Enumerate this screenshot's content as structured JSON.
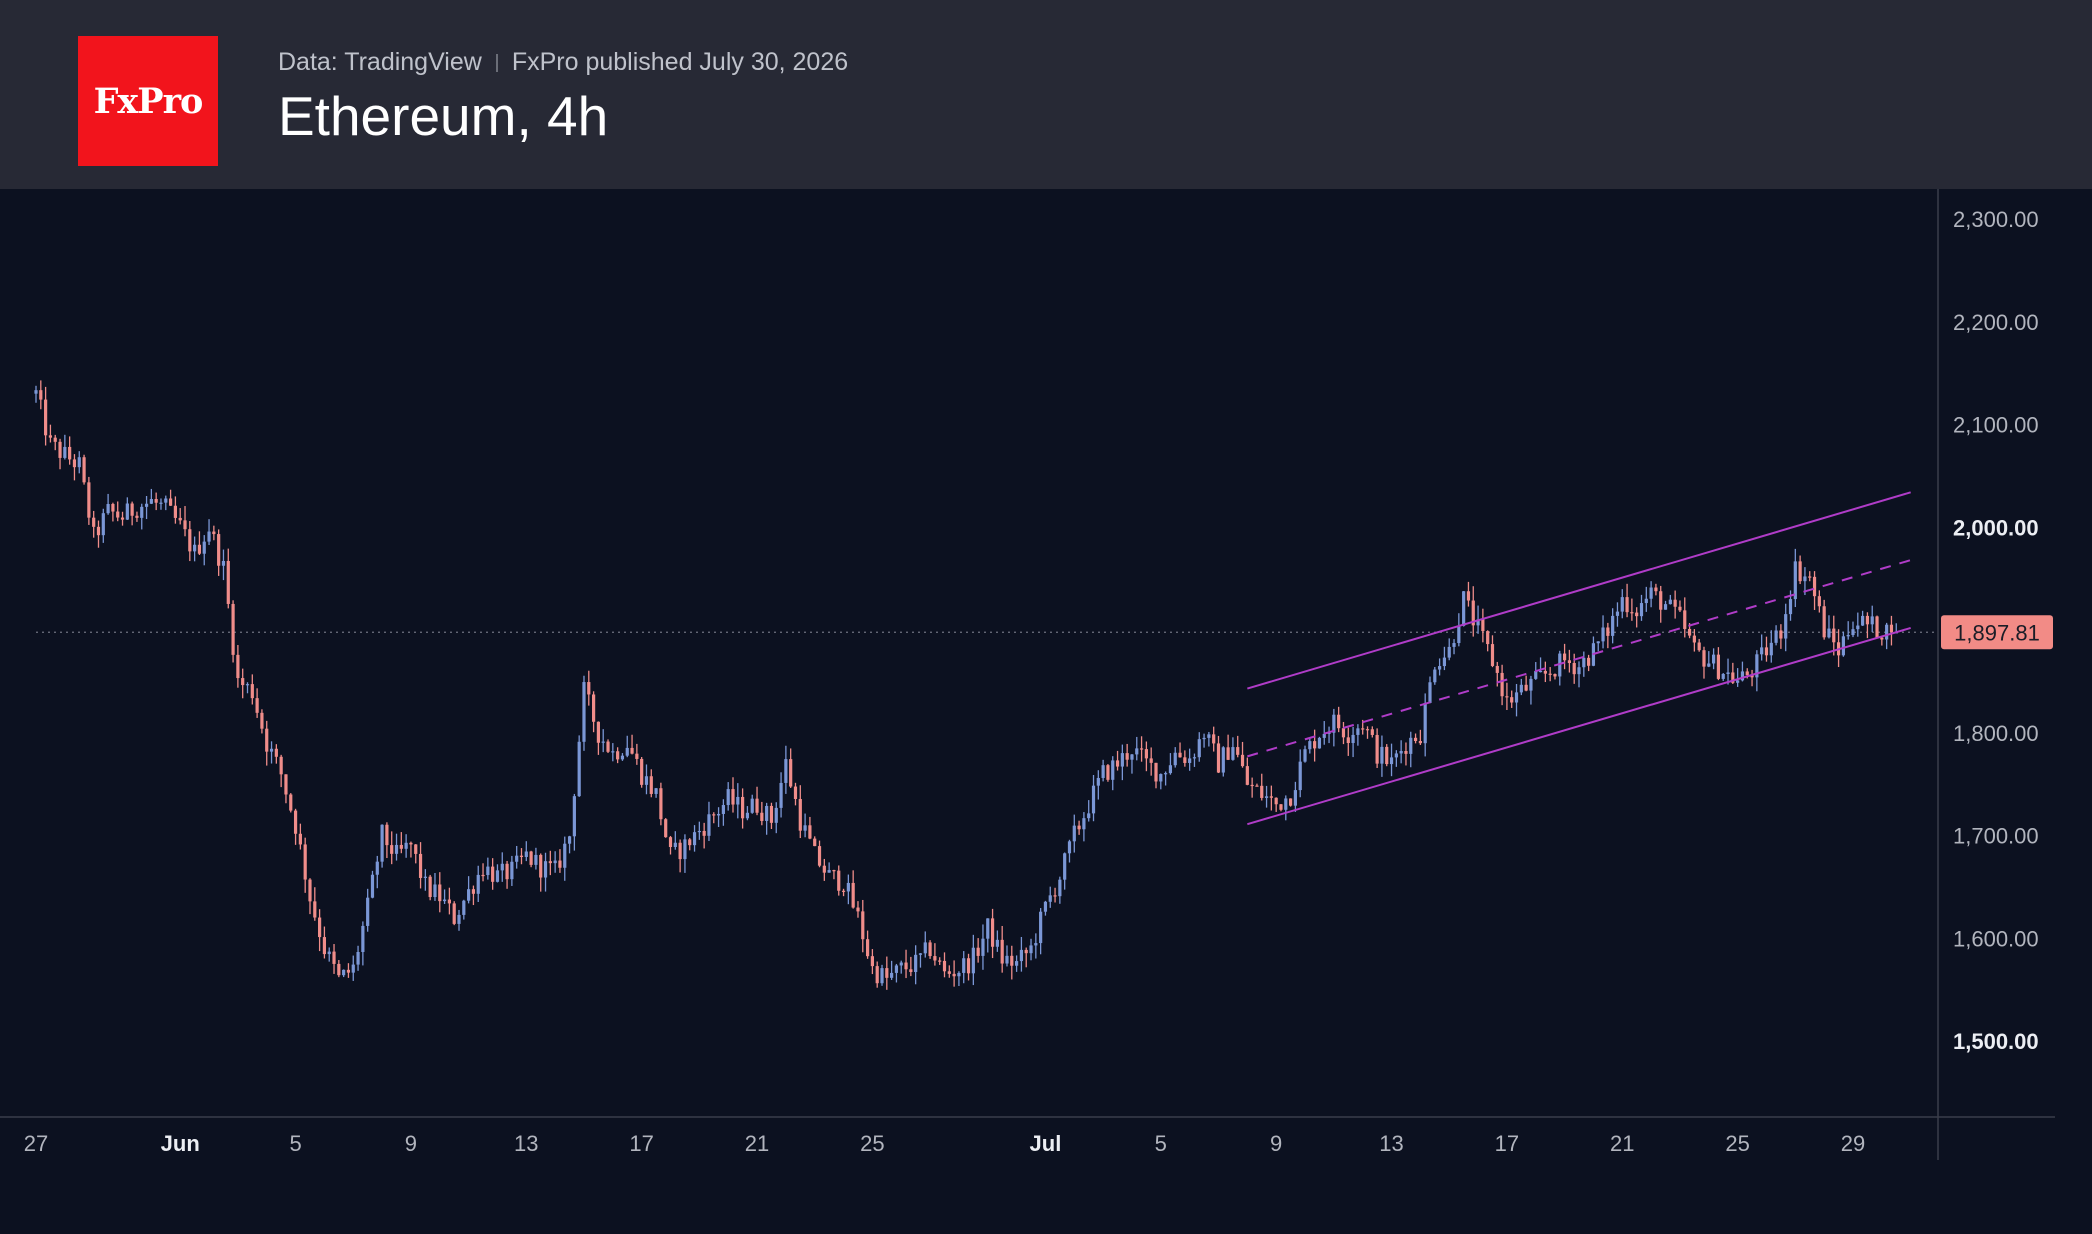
{
  "header": {
    "logo_text": "FxPro",
    "data_source": "Data: TradingView",
    "published": "FxPro published July 30, 2026",
    "title": "Ethereum, 4h"
  },
  "colors": {
    "background": "#0c1120",
    "header_background": "#272935",
    "logo_red": "#f2141c",
    "bull_candle": "#7b97d6",
    "bear_candle": "#f08d8a",
    "channel": "#b03cc8",
    "price_label": "#f28b86"
  },
  "chart_data": {
    "type": "candlestick",
    "title": "Ethereum, 4h",
    "ylim": [
      1420,
      2330
    ],
    "y_ticks": [
      {
        "value": 2300,
        "label": "2,300.00",
        "bold": false
      },
      {
        "value": 2200,
        "label": "2,200.00",
        "bold": false
      },
      {
        "value": 2100,
        "label": "2,100.00",
        "bold": false
      },
      {
        "value": 2000,
        "label": "2,000.00",
        "bold": true
      },
      {
        "value": 1800,
        "label": "1,800.00",
        "bold": false
      },
      {
        "value": 1700,
        "label": "1,700.00",
        "bold": false
      },
      {
        "value": 1600,
        "label": "1,600.00",
        "bold": false
      },
      {
        "value": 1500,
        "label": "1,500.00",
        "bold": true
      }
    ],
    "x_ticks": [
      {
        "date": "2026-05-27",
        "label": "27",
        "bold": false
      },
      {
        "date": "2026-06-01",
        "label": "Jun",
        "bold": true
      },
      {
        "date": "2026-06-05",
        "label": "5",
        "bold": false
      },
      {
        "date": "2026-06-09",
        "label": "9",
        "bold": false
      },
      {
        "date": "2026-06-13",
        "label": "13",
        "bold": false
      },
      {
        "date": "2026-06-17",
        "label": "17",
        "bold": false
      },
      {
        "date": "2026-06-21",
        "label": "21",
        "bold": false
      },
      {
        "date": "2026-06-25",
        "label": "25",
        "bold": false
      },
      {
        "date": "2026-07-01",
        "label": "Jul",
        "bold": true
      },
      {
        "date": "2026-07-05",
        "label": "5",
        "bold": false
      },
      {
        "date": "2026-07-09",
        "label": "9",
        "bold": false
      },
      {
        "date": "2026-07-13",
        "label": "13",
        "bold": false
      },
      {
        "date": "2026-07-17",
        "label": "17",
        "bold": false
      },
      {
        "date": "2026-07-21",
        "label": "21",
        "bold": false
      },
      {
        "date": "2026-07-25",
        "label": "25",
        "bold": false
      },
      {
        "date": "2026-07-29",
        "label": "29",
        "bold": false
      }
    ],
    "last_price": 1897.81,
    "last_price_label": "1,897.81",
    "price_path": [
      [
        "2026-05-27",
        2130
      ],
      [
        "2026-05-27",
        2080
      ],
      [
        "2026-05-28",
        2070
      ],
      [
        "2026-05-28",
        2060
      ],
      [
        "2026-05-28",
        1990
      ],
      [
        "2026-05-29",
        2015
      ],
      [
        "2026-05-29",
        2010
      ],
      [
        "2026-05-30",
        2020
      ],
      [
        "2026-05-30",
        2025
      ],
      [
        "2026-05-31",
        2018
      ],
      [
        "2026-06-01",
        2000
      ],
      [
        "2026-06-01",
        1975
      ],
      [
        "2026-06-02",
        2000
      ],
      [
        "2026-06-02",
        1960
      ],
      [
        "2026-06-03",
        1850
      ],
      [
        "2026-06-03",
        1840
      ],
      [
        "2026-06-04",
        1790
      ],
      [
        "2026-06-04",
        1760
      ],
      [
        "2026-06-05",
        1710
      ],
      [
        "2026-06-05",
        1640
      ],
      [
        "2026-06-06",
        1590
      ],
      [
        "2026-06-06",
        1560
      ],
      [
        "2026-06-07",
        1570
      ],
      [
        "2026-06-07",
        1630
      ],
      [
        "2026-06-08",
        1700
      ],
      [
        "2026-06-08",
        1680
      ],
      [
        "2026-06-09",
        1690
      ],
      [
        "2026-06-09",
        1650
      ],
      [
        "2026-06-10",
        1640
      ],
      [
        "2026-06-10",
        1620
      ],
      [
        "2026-06-11",
        1645
      ],
      [
        "2026-06-11",
        1670
      ],
      [
        "2026-06-12",
        1660
      ],
      [
        "2026-06-12",
        1665
      ],
      [
        "2026-06-13",
        1680
      ],
      [
        "2026-06-13",
        1670
      ],
      [
        "2026-06-14",
        1665
      ],
      [
        "2026-06-14",
        1700
      ],
      [
        "2026-06-15",
        1840
      ],
      [
        "2026-06-15",
        1800
      ],
      [
        "2026-06-16",
        1780
      ],
      [
        "2026-06-16",
        1790
      ],
      [
        "2026-06-17",
        1760
      ],
      [
        "2026-06-17",
        1740
      ],
      [
        "2026-06-18",
        1680
      ],
      [
        "2026-06-18",
        1690
      ],
      [
        "2026-06-19",
        1705
      ],
      [
        "2026-06-19",
        1720
      ],
      [
        "2026-06-20",
        1735
      ],
      [
        "2026-06-20",
        1725
      ],
      [
        "2026-06-21",
        1730
      ],
      [
        "2026-06-21",
        1715
      ],
      [
        "2026-06-22",
        1770
      ],
      [
        "2026-06-22",
        1715
      ],
      [
        "2026-06-23",
        1680
      ],
      [
        "2026-06-23",
        1660
      ],
      [
        "2026-06-24",
        1655
      ],
      [
        "2026-06-24",
        1620
      ],
      [
        "2026-06-25",
        1570
      ],
      [
        "2026-06-25",
        1560
      ],
      [
        "2026-06-26",
        1570
      ],
      [
        "2026-06-26",
        1575
      ],
      [
        "2026-06-27",
        1590
      ],
      [
        "2026-06-27",
        1565
      ],
      [
        "2026-06-28",
        1570
      ],
      [
        "2026-06-28",
        1580
      ],
      [
        "2026-06-29",
        1610
      ],
      [
        "2026-06-29",
        1580
      ],
      [
        "2026-06-30",
        1575
      ],
      [
        "2026-06-30",
        1590
      ],
      [
        "2026-07-01",
        1630
      ],
      [
        "2026-07-01",
        1660
      ],
      [
        "2026-07-02",
        1700
      ],
      [
        "2026-07-02",
        1730
      ],
      [
        "2026-07-03",
        1760
      ],
      [
        "2026-07-03",
        1770
      ],
      [
        "2026-07-04",
        1785
      ],
      [
        "2026-07-04",
        1770
      ],
      [
        "2026-07-05",
        1760
      ],
      [
        "2026-07-05",
        1780
      ],
      [
        "2026-07-06",
        1775
      ],
      [
        "2026-07-06",
        1800
      ],
      [
        "2026-07-07",
        1770
      ],
      [
        "2026-07-07",
        1790
      ],
      [
        "2026-07-08",
        1750
      ],
      [
        "2026-07-08",
        1740
      ],
      [
        "2026-07-09",
        1730
      ],
      [
        "2026-07-09",
        1740
      ],
      [
        "2026-07-10",
        1780
      ],
      [
        "2026-07-10",
        1800
      ],
      [
        "2026-07-11",
        1810
      ],
      [
        "2026-07-11",
        1800
      ],
      [
        "2026-07-12",
        1810
      ],
      [
        "2026-07-12",
        1780
      ],
      [
        "2026-07-13",
        1770
      ],
      [
        "2026-07-13",
        1790
      ],
      [
        "2026-07-14",
        1800
      ],
      [
        "2026-07-14",
        1870
      ],
      [
        "2026-07-15",
        1880
      ],
      [
        "2026-07-15",
        1930
      ],
      [
        "2026-07-16",
        1900
      ],
      [
        "2026-07-16",
        1870
      ],
      [
        "2026-07-17",
        1830
      ],
      [
        "2026-07-17",
        1840
      ],
      [
        "2026-07-18",
        1850
      ],
      [
        "2026-07-18",
        1860
      ],
      [
        "2026-07-19",
        1870
      ],
      [
        "2026-07-19",
        1865
      ],
      [
        "2026-07-20",
        1880
      ],
      [
        "2026-07-20",
        1900
      ],
      [
        "2026-07-21",
        1930
      ],
      [
        "2026-07-21",
        1920
      ],
      [
        "2026-07-22",
        1935
      ],
      [
        "2026-07-22",
        1925
      ],
      [
        "2026-07-23",
        1910
      ],
      [
        "2026-07-23",
        1880
      ],
      [
        "2026-07-24",
        1870
      ],
      [
        "2026-07-24",
        1860
      ],
      [
        "2026-07-25",
        1850
      ],
      [
        "2026-07-25",
        1860
      ],
      [
        "2026-07-26",
        1880
      ],
      [
        "2026-07-26",
        1900
      ],
      [
        "2026-07-27",
        1960
      ],
      [
        "2026-07-27",
        1950
      ],
      [
        "2026-07-28",
        1900
      ],
      [
        "2026-07-28",
        1880
      ],
      [
        "2026-07-29",
        1910
      ],
      [
        "2026-07-29",
        1905
      ],
      [
        "2026-07-30",
        1900
      ],
      [
        "2026-07-30",
        1897.81
      ]
    ],
    "channel": {
      "upper": [
        [
          "2026-07-08",
          1843
        ],
        [
          "2026-07-31",
          2034
        ]
      ],
      "middle": [
        [
          "2026-07-08",
          1777
        ],
        [
          "2026-07-31",
          1968
        ]
      ],
      "lower": [
        [
          "2026-07-08",
          1711
        ],
        [
          "2026-07-31",
          1902
        ]
      ]
    }
  }
}
